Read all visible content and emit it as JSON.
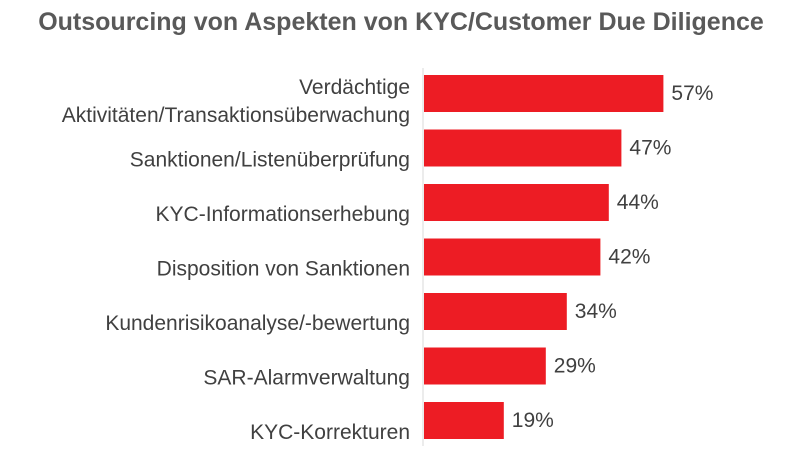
{
  "chart_data": {
    "type": "bar",
    "orientation": "horizontal",
    "title": "Outsourcing von Aspekten von KYC/Customer Due Diligence",
    "categories": [
      [
        "Verdächtige",
        "Aktivitäten/Transaktionsüberwachung"
      ],
      [
        "Sanktionen/Listenüberprüfung"
      ],
      [
        "KYC-Informationserhebung"
      ],
      [
        "Disposition von Sanktionen"
      ],
      [
        "Kundenrisikoanalyse/-bewertung"
      ],
      [
        "SAR-Alarmverwaltung"
      ],
      [
        "KYC-Korrekturen"
      ]
    ],
    "values": [
      57,
      47,
      44,
      42,
      34,
      29,
      19
    ],
    "value_labels": [
      "57%",
      "47%",
      "44%",
      "42%",
      "34%",
      "29%",
      "19%"
    ],
    "unit": "%",
    "xlim": [
      0,
      100
    ],
    "bar_color": "#ed1c24",
    "grid": false,
    "legend": "none"
  }
}
